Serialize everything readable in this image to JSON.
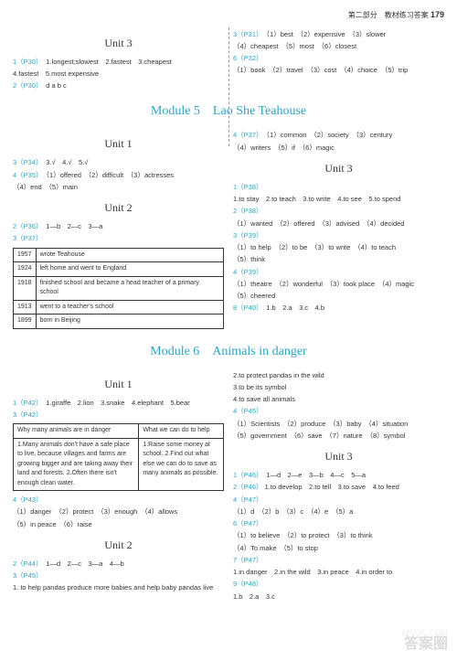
{
  "header": {
    "section": "第二部分　教材练习答案",
    "page": "179"
  },
  "top": {
    "left": {
      "unit": "Unit 3",
      "l1_ref": "1（P30）",
      "l1": "1.longest;slowest　2.fastest　3.cheapest",
      "l2": "4.fastest　5.most expensive",
      "l3_ref": "2（P30）",
      "l3": "d a b c"
    },
    "right": {
      "l1_ref": "3（P31）",
      "l1": "（1）best　（2）expensive　（3）slower",
      "l2": "（4）cheapest　（5）most　（6）closest",
      "l3_ref": "6（P32）",
      "l4": "（1）book　（2）travel　（3）cost　（4）choice　（5）trip"
    }
  },
  "mod5": {
    "title": "Module 5　Lao She Teahouse",
    "left": {
      "u1": "Unit 1",
      "u1_l1_ref": "3（P34）",
      "u1_l1": "3.√　4.√　5.√",
      "u1_l2_ref": "4（P35）",
      "u1_l2": "（1）offered　（2）difficult　（3）actresses",
      "u1_l3": "（4）end　（5）main",
      "u2": "Unit 2",
      "u2_l1_ref": "2（P36）",
      "u2_l1": "1—b　2—c　3—a",
      "u2_l2_ref": "3（P37）",
      "table": [
        [
          "1957",
          "wrote Teahouse"
        ],
        [
          "1924",
          "left home and went to England"
        ],
        [
          "1918",
          "finished school and became a head teacher of a primary school"
        ],
        [
          "1913",
          "went to a teacher's school"
        ],
        [
          "1899",
          "born in Beijing"
        ]
      ]
    },
    "right": {
      "l1_ref": "4（P37）",
      "l1": "（1）common　（2）society　（3）century",
      "l2": "（4）writers　（5）if　（6）magic",
      "u3": "Unit 3",
      "l3_ref": "1（P38）",
      "l3": "1.to stay　2.to teach　3.to write　4.to see　5.to spend",
      "l4_ref": "2（P38）",
      "l4": "（1）wanted　（2）offered　（3）advised　（4）decided",
      "l5_ref": "3（P39）",
      "l5": "（1）to help　（2）to be　（3）to write　（4）to teach",
      "l6": "（5）think",
      "l7_ref": "4（P39）",
      "l7": "（1）theatre　（2）wonderful　（3）took place　（4）magic",
      "l8": "（5）cheered",
      "l9_ref": "8（P40）",
      "l9": "1.b　2.a　3.c　4.b"
    }
  },
  "mod6": {
    "title": "Module 6　Animals in danger",
    "left": {
      "u1": "Unit 1",
      "l1_ref": "1（P42）",
      "l1": "1.giraffe　2.lion　3.snake　4.elephant　5.bear",
      "l2_ref": "3（P42）",
      "thead": [
        "Why many animals are in danger",
        "What we can do to help"
      ],
      "tcell1": "1.Many animals don't have a safe place to live, because villages and farms are growing bigger and are taking away their land and forests. 2.Often there isn't enough clean water.",
      "tcell2": "1.Raise some money at school. 2.Find out what else we can do to save as many animals as possible.",
      "l3_ref": "4（P43）",
      "l3": "（1）danger　（2）protect　（3）enough　（4）allows",
      "l4": "（5）in peace　（6）raise",
      "u2": "Unit 2",
      "l5_ref": "2（P44）",
      "l5": "1—d　2—c　3—a　4—b",
      "l6_ref": "3（P45）",
      "l6": "1. to help pandas produce more babies and help baby pandas live"
    },
    "right": {
      "l1": "2.to protect pandas in the wild",
      "l2": "3.to be its symbol",
      "l3": "4.to save all animals",
      "l4_ref": "4（P45）",
      "l4": "（1）Scientists　（2）produce　（3）baby　（4）situation",
      "l5": "（5）government　（6）save　（7）nature　（8）symbol",
      "u3": "Unit 3",
      "l6_ref": "1（P46）",
      "l6": "1—d　2—e　3—b　4—c　5—a",
      "l7_ref": "2（P46）",
      "l7": "1.to develop　2.to tell　3.to save　4.to feed",
      "l8_ref": "4（P47）",
      "l8": "（1）d　（2）b　（3）c　（4）e　（5）a",
      "l9_ref": "6（P47）",
      "l9": "（1）to believe　（2）to protect　（3）to think",
      "l10": "（4）To make　（5）to stop",
      "l11_ref": "7（P47）",
      "l11": "1.in danger　2.in the wild　3.in peace　4.in order to",
      "l12_ref": "9（P48）",
      "l12": "1.b　2.a　3.c"
    }
  },
  "wm1": "答案圈",
  "wm2": "MXQE.COM"
}
